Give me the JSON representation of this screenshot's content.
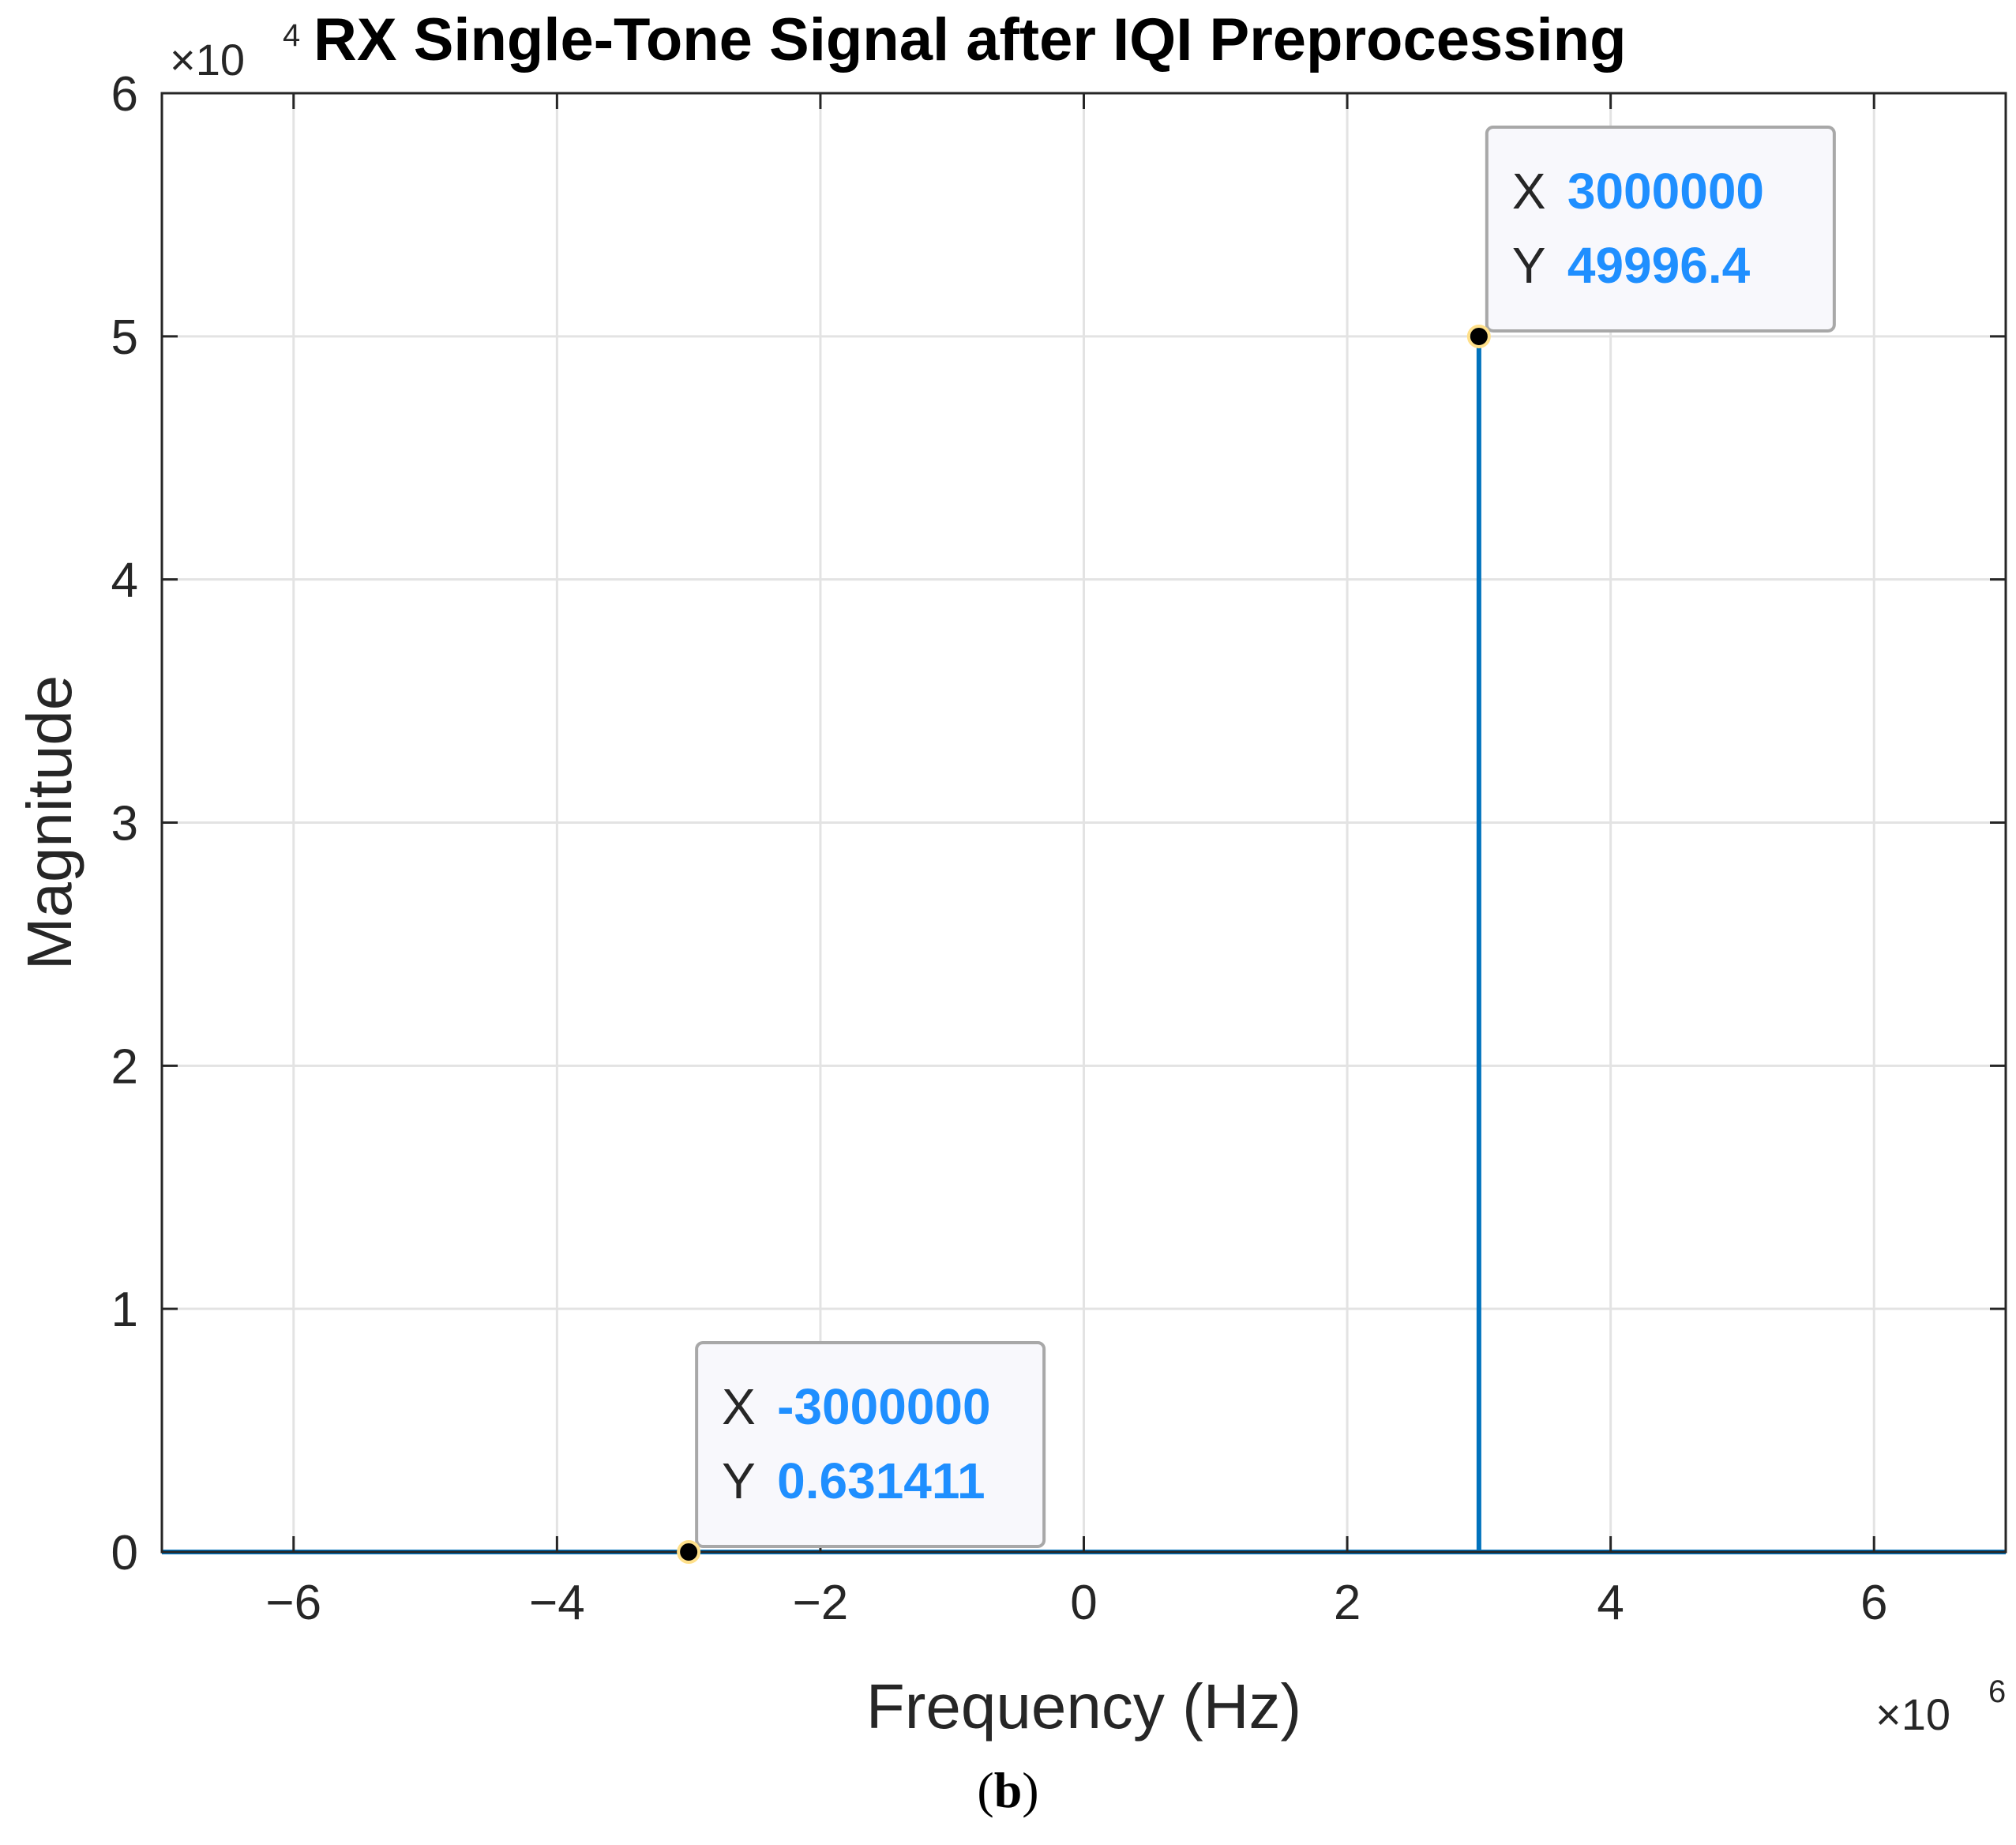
{
  "chart_data": {
    "type": "line",
    "title": "RX Single-Tone Signal after IQI Preprocessing",
    "xlabel": "Frequency (Hz)",
    "ylabel": "Magnitude",
    "xlim": [
      -7000000,
      7000000
    ],
    "ylim": [
      0,
      60000
    ],
    "x_exponent": {
      "base": "×10",
      "power": "6"
    },
    "y_exponent": {
      "base": "×10",
      "power": "4"
    },
    "x_ticks": [
      -6,
      -4,
      -2,
      0,
      2,
      4,
      6
    ],
    "x_tick_labels": [
      "−6",
      "−4",
      "−2",
      "0",
      "2",
      "4",
      "6"
    ],
    "y_ticks": [
      0,
      1,
      2,
      3,
      4,
      5,
      6
    ],
    "y_tick_labels": [
      "0",
      "1",
      "2",
      "3",
      "4",
      "5",
      "6"
    ],
    "grid": true,
    "series": [
      {
        "color": "#0072bd",
        "x": [
          -7000000,
          -3000000,
          2999999,
          3000000,
          3000001,
          7000000
        ],
        "y": [
          0,
          0.631411,
          0,
          49996.4,
          0,
          0
        ]
      }
    ],
    "datatips": [
      {
        "x": -3000000,
        "y": 0.631411,
        "x_key": "X",
        "y_key": "Y",
        "x_text": "-3000000",
        "y_text": "0.631411"
      },
      {
        "x": 3000000,
        "y": 49996.4,
        "x_key": "X",
        "y_key": "Y",
        "x_text": "3000000",
        "y_text": "49996.4"
      }
    ]
  },
  "caption": {
    "open": "(",
    "letter": "b",
    "close": ")"
  }
}
